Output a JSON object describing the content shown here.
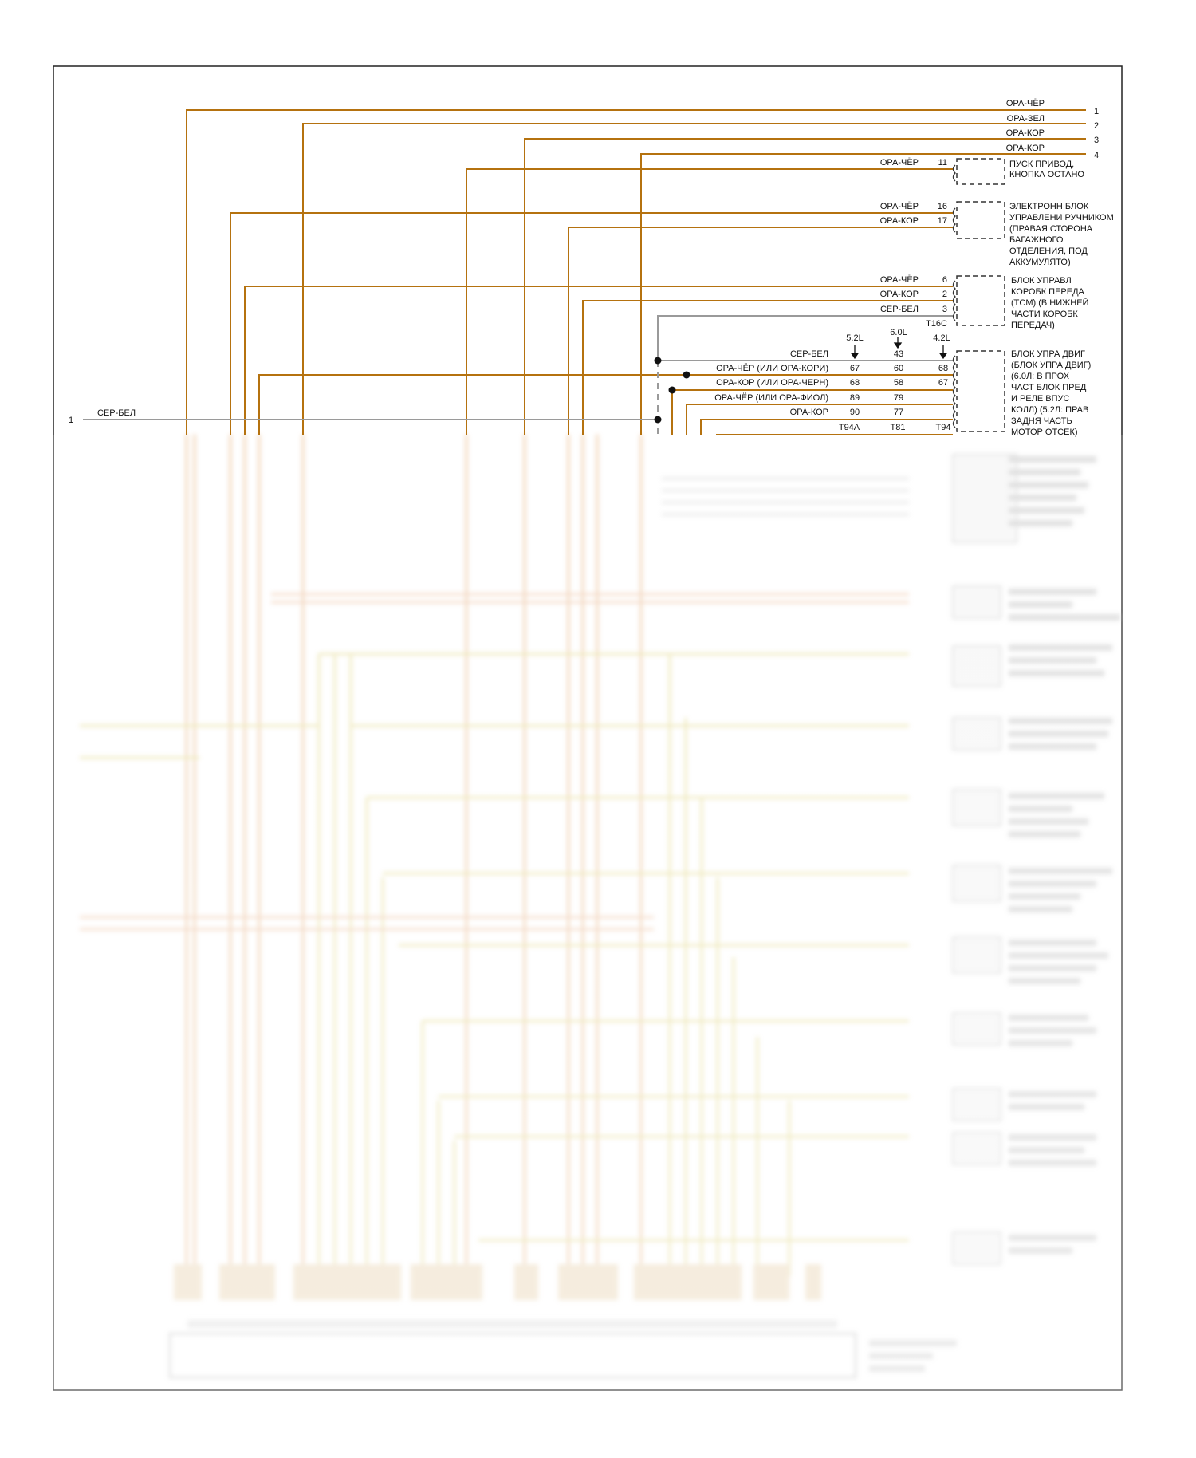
{
  "colors": {
    "orange_brown": "#b5720f",
    "gray": "#9a9a9a",
    "dash": "#333333",
    "border": "#222222"
  },
  "top_wires": [
    {
      "color_label": "ОРА-ЧЁР",
      "number": "1"
    },
    {
      "color_label": "ОРА-ЗЕЛ",
      "number": "2"
    },
    {
      "color_label": "ОРА-КОР",
      "number": "3"
    },
    {
      "color_label": "ОРА-КОР",
      "number": "4"
    }
  ],
  "left_wire": {
    "number": "1",
    "color_label": "СЕР-БЕЛ"
  },
  "components": {
    "start_button": {
      "wire_label": "ОРА-ЧЁР",
      "pin": "11",
      "lines": [
        "ПУСК ПРИВОД,",
        "КНОПКА ОСТАНО"
      ]
    },
    "handbrake_module": {
      "wires": [
        {
          "label": "ОРА-ЧЁР",
          "pin": "16"
        },
        {
          "label": "ОРА-КОР",
          "pin": "17"
        }
      ],
      "lines": [
        "ЭЛЕКТРОНН БЛОК",
        "УПРАВЛЕНИ РУЧНИКОМ",
        "(ПРАВАЯ СТОРОНА",
        "БАГАЖНОГО",
        "ОТДЕЛЕНИЯ, ПОД",
        "АККУМУЛЯТО)"
      ]
    },
    "tcm": {
      "wires": [
        {
          "label": "ОРА-ЧЁР",
          "pin": "6"
        },
        {
          "label": "ОРА-КОР",
          "pin": "2"
        },
        {
          "label": "СЕР-БЕЛ",
          "pin": "3"
        }
      ],
      "connector": "T16C",
      "lines": [
        "БЛОК УПРАВЛ",
        "КОРОБК ПЕРЕДА",
        "(TCM) (В НИЖНЕЙ",
        "ЧАСТИ КОРОБК",
        "ПЕРЕДАЧ)"
      ]
    },
    "ecm": {
      "engine_headers": [
        "5.2L",
        "6.0L",
        "4.2L"
      ],
      "rows": [
        {
          "label": "СЕР-БЕЛ",
          "p52": "",
          "p60": "43",
          "p42": ""
        },
        {
          "label": "ОРА-ЧЁР   (ИЛИ ОРА-КОРИ)",
          "p52": "67",
          "p60": "60",
          "p42": "68"
        },
        {
          "label": "ОРА-КОР   (ИЛИ ОРА-ЧЕРН)",
          "p52": "68",
          "p60": "58",
          "p42": "67"
        },
        {
          "label": "ОРА-ЧЁР   (ИЛИ ОРА-ФИОЛ)",
          "p52": "89",
          "p60": "79",
          "p42": ""
        },
        {
          "label": "ОРА-КОР",
          "p52": "90",
          "p60": "77",
          "p42": ""
        }
      ],
      "connectors": [
        "T94A",
        "T81",
        "T94"
      ],
      "lines": [
        "БЛОК УПРА ДВИГ",
        "(БЛОК УПРА ДВИГ)",
        "(6.0Л: В ПРОХ",
        "ЧАСТ БЛОК ПРЕД",
        "И РЕЛЕ ВПУС",
        "КОЛЛ) (5.2Л: ПРАВ",
        "ЗАДНЯ ЧАСТЬ",
        "МОТОР ОТСЕК)"
      ]
    }
  }
}
